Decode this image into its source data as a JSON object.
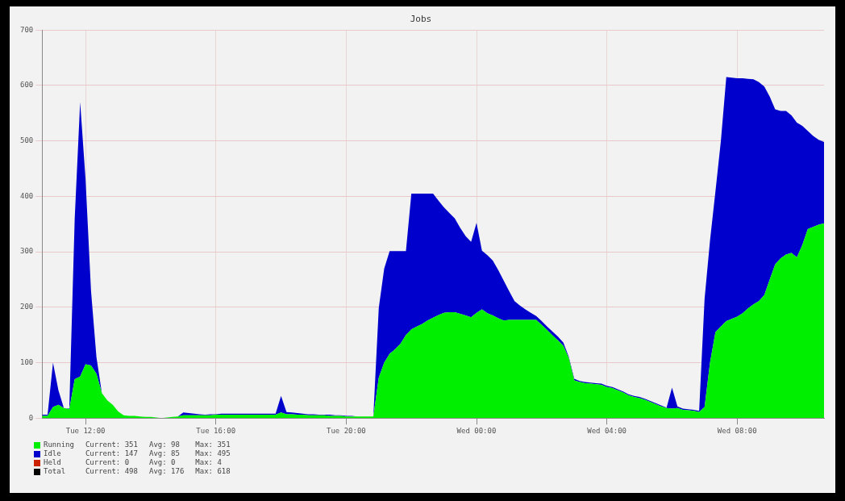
{
  "chart_data": {
    "type": "area",
    "title": "Jobs",
    "stacked": true,
    "grid": true,
    "legend": "bottom left",
    "categories": [
      null,
      null,
      null,
      null,
      null,
      null,
      null,
      null,
      "Tue 12:00",
      null,
      null,
      null,
      null,
      null,
      null,
      null,
      null,
      null,
      null,
      null,
      null,
      null,
      null,
      null,
      null,
      null,
      null,
      null,
      null,
      null,
      null,
      null,
      "Tue 16:00",
      null,
      null,
      null,
      null,
      null,
      null,
      null,
      null,
      null,
      null,
      null,
      null,
      null,
      null,
      null,
      null,
      null,
      null,
      null,
      null,
      null,
      null,
      null,
      "Tue 20:00",
      null,
      null,
      null,
      null,
      null,
      null,
      null,
      null,
      null,
      null,
      null,
      null,
      null,
      null,
      null,
      null,
      null,
      null,
      null,
      null,
      null,
      null,
      null,
      "Wed 00:00",
      null,
      null,
      null,
      null,
      null,
      null,
      null,
      null,
      null,
      null,
      null,
      null,
      null,
      null,
      null,
      null,
      null,
      null,
      null,
      null,
      null,
      null,
      null,
      "Wed 04:00",
      null,
      null,
      null,
      null,
      null,
      null,
      null,
      null,
      null,
      null,
      null,
      null,
      null,
      null,
      null,
      null,
      null,
      null,
      null,
      null,
      null,
      null,
      null,
      "Wed 08:00",
      null,
      null,
      null,
      null,
      null,
      null,
      null,
      null,
      null,
      null,
      null,
      null,
      null,
      null,
      null,
      null
    ],
    "ylim": [
      0,
      700
    ],
    "yticks": [
      0,
      100,
      200,
      300,
      400,
      500,
      600,
      700
    ],
    "series": [
      {
        "name": "Running",
        "color": "#00ee00",
        "values": [
          4,
          4,
          20,
          24,
          18,
          16,
          70,
          75,
          97,
          95,
          80,
          45,
          32,
          24,
          12,
          5,
          4,
          4,
          3,
          2,
          2,
          1,
          0,
          1,
          2,
          3,
          5,
          5,
          5,
          5,
          5,
          5,
          6,
          6,
          6,
          6,
          6,
          6,
          6,
          6,
          6,
          6,
          6,
          6,
          10,
          7,
          7,
          6,
          6,
          5,
          5,
          5,
          5,
          4,
          4,
          4,
          3,
          3,
          3,
          3,
          3,
          3,
          73,
          100,
          116,
          124,
          134,
          150,
          160,
          165,
          170,
          176,
          181,
          186,
          190,
          191,
          191,
          188,
          185,
          182,
          190,
          196,
          189,
          185,
          180,
          176,
          177,
          177,
          177,
          177,
          177,
          177,
          168,
          159,
          149,
          140,
          130,
          108,
          68,
          65,
          63,
          62,
          61,
          60,
          56,
          54,
          50,
          46,
          41,
          38,
          36,
          33,
          29,
          25,
          21,
          18,
          17,
          18,
          15,
          14,
          13,
          11,
          20,
          100,
          155,
          165,
          175,
          179,
          183,
          189,
          198,
          205,
          211,
          222,
          250,
          277,
          288,
          295,
          298,
          290,
          312,
          341,
          345,
          349,
          351
        ]
      },
      {
        "name": "Idle",
        "color": "#0000cc",
        "values": [
          2,
          2,
          80,
          26,
          0,
          1,
          290,
          495,
          333,
          135,
          30,
          0,
          0,
          0,
          0,
          0,
          0,
          0,
          0,
          0,
          0,
          0,
          0,
          0,
          0,
          0,
          5,
          4,
          3,
          2,
          1,
          2,
          1,
          2,
          2,
          2,
          2,
          2,
          2,
          2,
          2,
          2,
          2,
          2,
          30,
          4,
          3,
          3,
          2,
          2,
          2,
          1,
          1,
          2,
          1,
          1,
          1,
          1,
          0,
          0,
          0,
          0,
          126,
          170,
          185,
          177,
          167,
          151,
          245,
          240,
          235,
          229,
          224,
          206,
          190,
          179,
          169,
          155,
          143,
          136,
          162,
          106,
          105,
          99,
          87,
          72,
          52,
          34,
          26,
          19,
          13,
          7,
          7,
          6,
          7,
          7,
          6,
          2,
          3,
          2,
          2,
          2,
          2,
          2,
          2,
          2,
          2,
          2,
          2,
          2,
          2,
          2,
          2,
          2,
          2,
          1,
          38,
          3,
          2,
          2,
          2,
          2,
          195,
          220,
          254,
          335,
          440,
          435,
          430,
          424,
          414,
          406,
          395,
          376,
          330,
          280,
          266,
          259,
          248,
          243,
          215,
          177,
          164,
          153,
          147
        ]
      },
      {
        "name": "Held",
        "color": "#cc2200",
        "values": [
          null,
          null,
          null,
          null,
          null,
          null,
          null,
          null,
          null,
          null,
          null,
          null,
          null,
          null,
          null,
          null,
          null,
          null,
          null,
          null,
          null,
          null,
          null,
          null,
          null,
          null,
          null,
          null,
          null,
          null,
          null,
          null,
          null,
          null,
          null,
          null,
          null,
          null,
          null,
          null,
          null,
          null,
          null,
          null,
          null,
          null,
          null,
          null,
          null,
          null,
          null,
          null,
          null,
          null,
          null,
          null,
          null,
          null,
          null,
          null,
          null,
          null,
          null,
          null,
          null,
          null,
          null,
          null,
          null,
          null,
          null,
          null,
          null,
          null,
          null,
          null,
          null,
          null,
          null,
          null,
          null,
          null,
          null,
          null,
          null,
          null,
          null,
          null,
          null,
          null,
          null,
          null,
          null,
          null,
          null,
          null,
          null,
          null,
          null,
          null,
          null,
          null,
          null,
          null,
          null,
          null,
          null,
          null,
          null,
          null,
          null,
          null,
          null,
          null,
          null,
          null,
          null,
          null,
          null,
          null,
          null,
          null,
          null,
          null,
          null,
          null,
          null,
          null,
          null,
          null,
          null,
          null,
          null,
          null,
          null,
          null,
          null,
          null,
          null,
          null,
          null,
          null,
          null,
          null,
          null
        ]
      },
      {
        "name": "Total",
        "color": "#000000",
        "values": [
          null,
          null,
          null,
          null,
          null,
          null,
          null,
          null,
          null,
          null,
          null,
          null,
          null,
          null,
          null,
          null,
          null,
          null,
          null,
          null,
          null,
          null,
          null,
          null,
          null,
          null,
          null,
          null,
          null,
          null,
          null,
          null,
          null,
          null,
          null,
          null,
          null,
          null,
          null,
          null,
          null,
          null,
          null,
          null,
          null,
          null,
          null,
          null,
          null,
          null,
          null,
          null,
          null,
          null,
          null,
          null,
          null,
          null,
          null,
          null,
          null,
          null,
          null,
          null,
          null,
          null,
          null,
          null,
          null,
          null,
          null,
          null,
          null,
          null,
          null,
          null,
          null,
          null,
          null,
          null,
          null,
          null,
          null,
          null,
          null,
          null,
          null,
          null,
          null,
          null,
          null,
          null,
          null,
          null,
          null,
          null,
          null,
          null,
          null,
          null,
          null,
          null,
          null,
          null,
          null,
          null,
          null,
          null,
          null,
          null,
          null,
          null,
          null,
          null,
          null,
          null,
          null,
          null,
          null,
          null,
          null,
          null,
          null,
          null,
          null,
          null,
          null,
          null,
          null,
          null,
          null,
          null,
          null,
          null,
          null,
          null,
          null,
          null,
          null,
          null,
          null,
          null,
          null,
          null,
          null
        ]
      }
    ],
    "annotations": [
      "Current: 351",
      "Avg: 98",
      "Max: 351",
      "Current: 147",
      "Avg: 85",
      "Max: 495",
      "Current: 0",
      "Avg: 0",
      "Max: 4",
      "Current: 498",
      "Avg: 176",
      "Max: 618"
    ]
  }
}
